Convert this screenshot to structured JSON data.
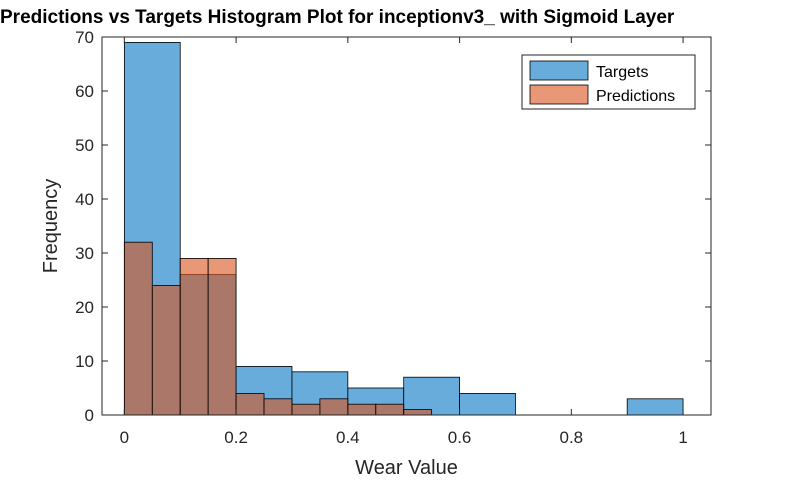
{
  "chart_data": {
    "type": "bar",
    "title": "Predictions vs Targets Histogram Plot for inceptionv3_ with Sigmoid Layer",
    "xlabel": "Wear Value",
    "ylabel": "Frequency",
    "xlim": [
      -0.04,
      1.05
    ],
    "ylim": [
      0,
      70
    ],
    "xticks": [
      "0",
      "0.2",
      "0.4",
      "0.6",
      "0.8",
      "1"
    ],
    "yticks": [
      "0",
      "10",
      "20",
      "30",
      "40",
      "50",
      "60",
      "70"
    ],
    "grid": false,
    "legend_position": "top-right",
    "series": [
      {
        "name": "Targets",
        "color": "#4d9dd6",
        "opacity": 0.85,
        "bins": [
          {
            "x0": 0.0,
            "x1": 0.1,
            "y": 69
          },
          {
            "x0": 0.1,
            "x1": 0.2,
            "y": 26
          },
          {
            "x0": 0.2,
            "x1": 0.3,
            "y": 9
          },
          {
            "x0": 0.3,
            "x1": 0.4,
            "y": 8
          },
          {
            "x0": 0.4,
            "x1": 0.5,
            "y": 5
          },
          {
            "x0": 0.5,
            "x1": 0.6,
            "y": 7
          },
          {
            "x0": 0.6,
            "x1": 0.7,
            "y": 4
          },
          {
            "x0": 0.7,
            "x1": 0.8,
            "y": 0
          },
          {
            "x0": 0.8,
            "x1": 0.9,
            "y": 0
          },
          {
            "x0": 0.9,
            "x1": 1.0,
            "y": 3
          }
        ]
      },
      {
        "name": "Predictions",
        "color": "#d9541a",
        "opacity": 0.6,
        "bins": [
          {
            "x0": 0.0,
            "x1": 0.05,
            "y": 32
          },
          {
            "x0": 0.05,
            "x1": 0.1,
            "y": 24
          },
          {
            "x0": 0.1,
            "x1": 0.15,
            "y": 29
          },
          {
            "x0": 0.15,
            "x1": 0.2,
            "y": 29
          },
          {
            "x0": 0.2,
            "x1": 0.25,
            "y": 4
          },
          {
            "x0": 0.25,
            "x1": 0.3,
            "y": 3
          },
          {
            "x0": 0.3,
            "x1": 0.35,
            "y": 2
          },
          {
            "x0": 0.35,
            "x1": 0.4,
            "y": 3
          },
          {
            "x0": 0.4,
            "x1": 0.45,
            "y": 2
          },
          {
            "x0": 0.45,
            "x1": 0.5,
            "y": 2
          },
          {
            "x0": 0.5,
            "x1": 0.55,
            "y": 1
          }
        ]
      }
    ]
  }
}
